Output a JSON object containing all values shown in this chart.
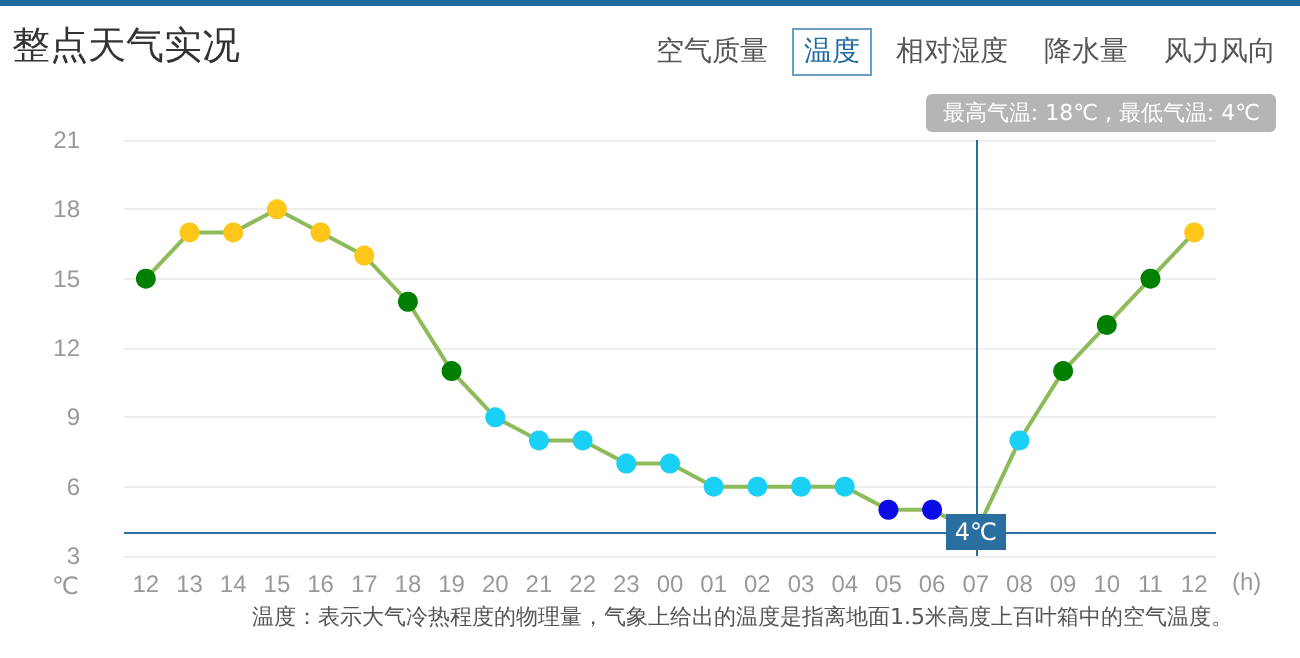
{
  "chart_data": {
    "type": "line",
    "title": "整点天气实况",
    "xlabel": "(h)",
    "ylabel": "℃",
    "categories": [
      "12",
      "13",
      "14",
      "15",
      "16",
      "17",
      "18",
      "19",
      "20",
      "21",
      "22",
      "23",
      "00",
      "01",
      "02",
      "03",
      "04",
      "05",
      "06",
      "07",
      "08",
      "09",
      "10",
      "11",
      "12"
    ],
    "series": [
      {
        "color": "#8dbb5a",
        "values": [
          15,
          17,
          17,
          18,
          17,
          16,
          14,
          11,
          9,
          8,
          8,
          7,
          7,
          6,
          6,
          6,
          6,
          5,
          5,
          4,
          8,
          11,
          13,
          15,
          17
        ],
        "colors": [
          "#007f00",
          "#ffc61a",
          "#ffc61a",
          "#ffc61a",
          "#ffc61a",
          "#ffc61a",
          "#007f00",
          "#007f00",
          "#1ad0f5",
          "#1ad0f5",
          "#1ad0f5",
          "#1ad0f5",
          "#1ad0f5",
          "#1ad0f5",
          "#1ad0f5",
          "#1ad0f5",
          "#1ad0f5",
          "#0a0ae6",
          "#0a0ae6",
          "#0a0ae6",
          "#1ad0f5",
          "#007f00",
          "#007f00",
          "#007f00",
          "#ffc61a"
        ]
      }
    ],
    "ylim": [
      3,
      21
    ],
    "yticks": [
      3,
      6,
      9,
      12,
      15,
      18,
      21
    ],
    "grid": "y",
    "marker": "circle",
    "line_style": "solid",
    "ref_lines": [
      {
        "axis": "x",
        "value": "07",
        "color": "#2a6fa0"
      },
      {
        "axis": "y",
        "value": 4,
        "label": "4℃",
        "color": "#2a6fa0"
      }
    ],
    "annotations": [
      "空气质量",
      "温度",
      "相对湿度",
      "降水量",
      "风力风向",
      "最高气温: 18℃ , 最低气温: 4℃",
      "温度：表示大气冷热程度的物理量，气象上给出的温度是指离地面1.5米高度上百叶箱中的空气温度。"
    ]
  }
}
